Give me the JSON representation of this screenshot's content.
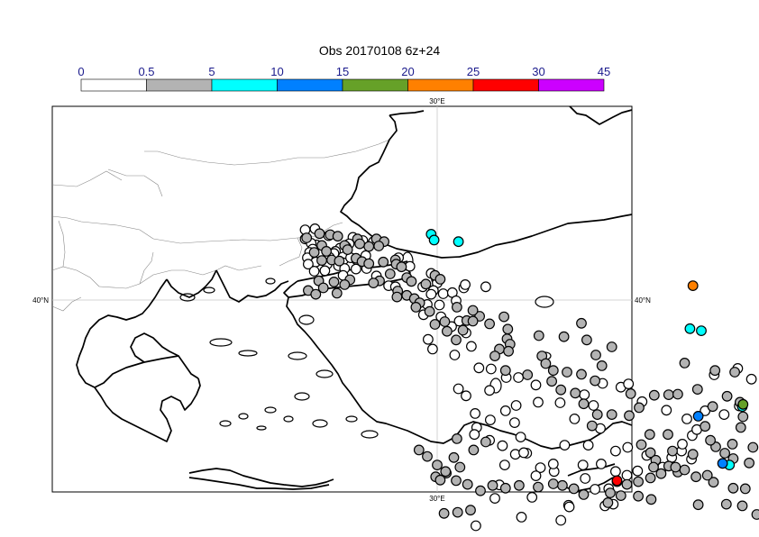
{
  "title": "Obs 20170108 6z+24",
  "colorbar": {
    "bins": [
      {
        "label": "0",
        "color": "#ffffff"
      },
      {
        "label": "0.5",
        "color": "#b3b3b3"
      },
      {
        "label": "5",
        "color": "#00ffff"
      },
      {
        "label": "10",
        "color": "#0080ff"
      },
      {
        "label": "15",
        "color": "#66a128"
      },
      {
        "label": "20",
        "color": "#ff8000"
      },
      {
        "label": "25",
        "color": "#ff0000"
      },
      {
        "label": "30",
        "color": "#cc00ff"
      }
    ],
    "last_label": "45"
  },
  "axes": {
    "lon_label_top": "30°E",
    "lon_label_bottom": "30°E",
    "lat_label_left": "40°N",
    "lat_label_right": "40°N"
  },
  "stations": {
    "white": [
      [
        40.2,
        57.2
      ],
      [
        41.5,
        57.4
      ],
      [
        43.3,
        56.1
      ],
      [
        47.8,
        55.2
      ],
      [
        46.5,
        55.8
      ],
      [
        49.2,
        55.0
      ],
      [
        46.0,
        54.6
      ],
      [
        45.6,
        54.0
      ],
      [
        44.8,
        53.8
      ],
      [
        44.2,
        53.2
      ],
      [
        41.7,
        54.4
      ],
      [
        44.0,
        52.8
      ],
      [
        40.2,
        55.5
      ],
      [
        41.0,
        54.7
      ],
      [
        41.2,
        53.6
      ],
      [
        40.8,
        53.0
      ],
      [
        43.4,
        52.1
      ],
      [
        46.2,
        52.0
      ],
      [
        48.2,
        52.4
      ],
      [
        47.0,
        51.6
      ],
      [
        40.5,
        52.0
      ],
      [
        41.6,
        51.2
      ],
      [
        43.1,
        50.8
      ],
      [
        44.6,
        50.5
      ],
      [
        45.4,
        50.0
      ],
      [
        46.9,
        49.9
      ],
      [
        48.3,
        50.0
      ],
      [
        40.6,
        50.8
      ],
      [
        41.4,
        49.5
      ],
      [
        42.8,
        49.6
      ],
      [
        45.2,
        48.7
      ],
      [
        49.6,
        48.6
      ],
      [
        52.5,
        52.0
      ],
      [
        54.0,
        50.4
      ],
      [
        56.8,
        49.1
      ],
      [
        57.5,
        48.0
      ],
      [
        51.2,
        46.8
      ],
      [
        52.1,
        46.6
      ],
      [
        55.7,
        46.6
      ],
      [
        57.6,
        47.3
      ],
      [
        61.1,
        46.4
      ],
      [
        61.3,
        47.0
      ],
      [
        64.0,
        46.6
      ],
      [
        57.1,
        45.9
      ],
      [
        56.8,
        45.2
      ],
      [
        58.4,
        45.3
      ],
      [
        59.6,
        45.5
      ],
      [
        56.3,
        43.3
      ],
      [
        57.9,
        43.2
      ],
      [
        60.1,
        44.0
      ],
      [
        55.8,
        41.4
      ],
      [
        58.1,
        41.0
      ],
      [
        60.5,
        40.2
      ],
      [
        59.5,
        39.2
      ],
      [
        61.4,
        38.0
      ],
      [
        56.4,
        36.8
      ],
      [
        57.0,
        35.0
      ],
      [
        59.9,
        33.9
      ],
      [
        62.1,
        35.5
      ],
      [
        63.1,
        31.5
      ],
      [
        64.7,
        31.3
      ],
      [
        66.7,
        29.7
      ],
      [
        70.6,
        28.3
      ],
      [
        68.3,
        29.7
      ],
      [
        64.5,
        27.3
      ],
      [
        61.4,
        26.3
      ],
      [
        60.4,
        27.6
      ],
      [
        62.6,
        23.0
      ],
      [
        64.6,
        21.8
      ],
      [
        62.8,
        20.4
      ],
      [
        62.5,
        19.1
      ],
      [
        64.5,
        18.0
      ],
      [
        66.2,
        17.0
      ],
      [
        67.9,
        15.4
      ],
      [
        69.4,
        15.6
      ],
      [
        71.2,
        12.9
      ],
      [
        73.0,
        12.2
      ],
      [
        76.8,
        13.4
      ],
      [
        79.2,
        13.6
      ],
      [
        81.1,
        12.2
      ],
      [
        82.6,
        11.5
      ],
      [
        85.2,
        15.2
      ],
      [
        87.3,
        13.0
      ],
      [
        84.0,
        12.3
      ],
      [
        74.9,
        5.9
      ],
      [
        73.9,
        3.1
      ],
      [
        68.7,
        3.7
      ],
      [
        62.7,
        2.1
      ],
      [
        79.7,
        5.8
      ],
      [
        80.8,
        6.1
      ],
      [
        81.3,
        10.3
      ],
      [
        80.2,
        9.0
      ],
      [
        70.6,
        11.4
      ],
      [
        72.9,
        13.6
      ],
      [
        66.5,
        13.4
      ],
      [
        65.8,
        9.7
      ],
      [
        65.2,
        7.2
      ],
      [
        70.1,
        7.4
      ],
      [
        75.0,
        5.6
      ],
      [
        78.4,
        8.9
      ],
      [
        77.1,
        10.9
      ],
      [
        69.0,
        15.7
      ],
      [
        68.6,
        18.6
      ],
      [
        67.8,
        21.3
      ],
      [
        66.6,
        23.5
      ],
      [
        68.0,
        24.5
      ],
      [
        70.9,
        25.1
      ],
      [
        75.7,
        22.0
      ],
      [
        79.1,
        20.2
      ],
      [
        78.2,
        24.5
      ],
      [
        73.8,
        25.0
      ],
      [
        74.4,
        17.1
      ],
      [
        77.5,
        17.1
      ],
      [
        81.1,
        16.0
      ],
      [
        82.7,
        16.7
      ],
      [
        88.5,
        14.8
      ],
      [
        89.8,
        16.0
      ],
      [
        91.1,
        14.5
      ],
      [
        89.9,
        17.3
      ],
      [
        91.2,
        18.9
      ],
      [
        91.8,
        20.0
      ],
      [
        90.5,
        22.0
      ],
      [
        92.9,
        23.5
      ],
      [
        95.4,
        22.8
      ],
      [
        97.4,
        24.4
      ],
      [
        99.0,
        29.4
      ],
      [
        97.2,
        31.4
      ],
      [
        94.1,
        30.2
      ],
      [
        87.8,
        23.6
      ],
      [
        84.6,
        25.2
      ],
      [
        81.8,
        27.9
      ],
      [
        79.4,
        28.6
      ],
      [
        77.0,
        26.5
      ],
      [
        82.8,
        28.5
      ]
    ],
    "gray": [
      [
        40.4,
        55.7
      ],
      [
        42.1,
        56.5
      ],
      [
        43.5,
        56.3
      ],
      [
        44.5,
        56.0
      ],
      [
        47.1,
        55.5
      ],
      [
        49.6,
        55.5
      ],
      [
        50.6,
        55.0
      ],
      [
        49.9,
        54.2
      ],
      [
        48.6,
        54.1
      ],
      [
        47.4,
        54.6
      ],
      [
        45.4,
        54.3
      ],
      [
        45.8,
        53.5
      ],
      [
        42.4,
        54.3
      ],
      [
        43.0,
        53.2
      ],
      [
        41.4,
        53.0
      ],
      [
        42.4,
        51.5
      ],
      [
        43.7,
        51.6
      ],
      [
        44.7,
        51.4
      ],
      [
        46.9,
        51.9
      ],
      [
        47.7,
        51.3
      ],
      [
        48.6,
        50.9
      ],
      [
        50.5,
        51.2
      ],
      [
        52.1,
        51.6
      ],
      [
        52.2,
        50.8
      ],
      [
        52.9,
        50.3
      ],
      [
        51.4,
        49.0
      ],
      [
        50.0,
        47.7
      ],
      [
        49.2,
        47.3
      ],
      [
        46.1,
        47.9
      ],
      [
        45.4,
        47.0
      ],
      [
        42.0,
        47.7
      ],
      [
        40.6,
        45.9
      ],
      [
        41.6,
        45.2
      ],
      [
        44.4,
        45.4
      ],
      [
        42.6,
        46.4
      ],
      [
        44.0,
        47.5
      ],
      [
        53.6,
        48.3
      ],
      [
        57.3,
        48.7
      ],
      [
        58.0,
        48.0
      ],
      [
        54.2,
        47.6
      ],
      [
        56.1,
        47.1
      ],
      [
        52.4,
        45.8
      ],
      [
        53.6,
        45.0
      ],
      [
        52.3,
        44.7
      ],
      [
        54.6,
        44.4
      ],
      [
        55.3,
        43.6
      ],
      [
        54.8,
        42.8
      ],
      [
        56.6,
        42.0
      ],
      [
        60.2,
        42.8
      ],
      [
        58.6,
        40.1
      ],
      [
        57.3,
        39.6
      ],
      [
        58.9,
        38.3
      ],
      [
        60.1,
        36.7
      ],
      [
        61.0,
        38.5
      ],
      [
        61.5,
        40.3
      ],
      [
        63.2,
        41.1
      ],
      [
        62.3,
        40.2
      ],
      [
        62.3,
        42.2
      ],
      [
        64.5,
        39.7
      ],
      [
        66.4,
        41.0
      ],
      [
        66.9,
        38.7
      ],
      [
        66.8,
        36.9
      ],
      [
        67.2,
        35.9
      ],
      [
        65.8,
        35.0
      ],
      [
        67.0,
        34.6
      ],
      [
        71.4,
        33.7
      ],
      [
        71.9,
        32.3
      ],
      [
        72.9,
        31.0
      ],
      [
        74.7,
        30.7
      ],
      [
        76.6,
        30.3
      ],
      [
        78.4,
        29.1
      ],
      [
        79.3,
        31.9
      ],
      [
        78.5,
        33.9
      ],
      [
        80.6,
        35.4
      ],
      [
        77.3,
        36.7
      ],
      [
        74.3,
        37.3
      ],
      [
        76.6,
        39.8
      ],
      [
        71.0,
        37.5
      ],
      [
        65.2,
        33.7
      ],
      [
        66.6,
        31.0
      ],
      [
        69.5,
        30.2
      ],
      [
        72.7,
        29.0
      ],
      [
        73.9,
        27.4
      ],
      [
        75.8,
        26.8
      ],
      [
        76.9,
        24.8
      ],
      [
        78.7,
        22.8
      ],
      [
        78.0,
        20.7
      ],
      [
        80.6,
        22.8
      ],
      [
        82.9,
        22.6
      ],
      [
        84.2,
        24.1
      ],
      [
        83.1,
        26.7
      ],
      [
        86.2,
        26.4
      ],
      [
        88.1,
        26.5
      ],
      [
        89.3,
        26.6
      ],
      [
        91.9,
        27.5
      ],
      [
        93.9,
        24.3
      ],
      [
        90.2,
        32.4
      ],
      [
        94.2,
        31.0
      ],
      [
        95.8,
        26.2
      ],
      [
        97.5,
        25.1
      ],
      [
        96.8,
        30.7
      ],
      [
        97.6,
        20.4
      ],
      [
        97.9,
        22.4
      ],
      [
        96.5,
        17.3
      ],
      [
        94.3,
        16.8
      ],
      [
        93.6,
        18.0
      ],
      [
        92.9,
        20.6
      ],
      [
        88.0,
        19.1
      ],
      [
        85.6,
        19.1
      ],
      [
        84.5,
        17.2
      ],
      [
        85.7,
        15.7
      ],
      [
        86.4,
        14.3
      ],
      [
        86.1,
        13.0
      ],
      [
        88.1,
        13.2
      ],
      [
        89.3,
        12.1
      ],
      [
        87.1,
        11.8
      ],
      [
        85.7,
        11.0
      ],
      [
        84.1,
        10.3
      ],
      [
        82.6,
        9.8
      ],
      [
        80.4,
        8.2
      ],
      [
        76.9,
        7.9
      ],
      [
        75.6,
        9.0
      ],
      [
        74.1,
        9.6
      ],
      [
        72.9,
        9.9
      ],
      [
        70.9,
        9.3
      ],
      [
        68.4,
        9.6
      ],
      [
        66.6,
        9.1
      ],
      [
        64.9,
        9.6
      ],
      [
        63.3,
        8.6
      ],
      [
        61.6,
        9.8
      ],
      [
        60.1,
        10.5
      ],
      [
        58.8,
        11.9
      ],
      [
        57.6,
        13.4
      ],
      [
        56.3,
        15.0
      ],
      [
        55.2,
        16.2
      ],
      [
        58.5,
        4.4
      ],
      [
        60.3,
        4.6
      ],
      [
        62.0,
        5.0
      ],
      [
        80.1,
        6.4
      ],
      [
        81.8,
        7.7
      ],
      [
        84.1,
        7.6
      ],
      [
        85.8,
        7.0
      ],
      [
        92.0,
        6.0
      ],
      [
        95.7,
        6.1
      ],
      [
        97.8,
        5.8
      ],
      [
        99.7,
        4.2
      ],
      [
        98.2,
        9.0
      ],
      [
        96.6,
        9.1
      ],
      [
        94.0,
        10.2
      ],
      [
        93.2,
        11.5
      ],
      [
        91.7,
        11.2
      ],
      [
        90.2,
        12.5
      ],
      [
        89.0,
        13.0
      ],
      [
        96.6,
        14.6
      ],
      [
        98.7,
        13.8
      ],
      [
        95.5,
        15.6
      ],
      [
        91.3,
        15.4
      ],
      [
        88.6,
        16.0
      ],
      [
        99.2,
        16.7
      ],
      [
        60.2,
        18.3
      ],
      [
        64.0,
        17.7
      ],
      [
        62.4,
        16.2
      ],
      [
        59.8,
        14.8
      ],
      [
        60.6,
        13.0
      ],
      [
        58.7,
        12.2
      ],
      [
        57.4,
        11.2
      ],
      [
        58.0,
        10.6
      ]
    ],
    "cyan": [
      [
        56.8,
        56.4
      ],
      [
        57.2,
        55.3
      ],
      [
        60.4,
        55.0
      ],
      [
        92.4,
        38.4
      ],
      [
        90.9,
        38.8
      ],
      [
        97.8,
        24.3
      ],
      [
        96.1,
        13.4
      ]
    ],
    "blue": [
      [
        92.0,
        22.5
      ],
      [
        95.2,
        13.7
      ]
    ],
    "green": [
      [
        97.9,
        24.7
      ]
    ],
    "orange": [
      [
        91.3,
        46.8
      ]
    ],
    "red": [
      [
        81.3,
        10.5
      ]
    ],
    "purple": []
  }
}
